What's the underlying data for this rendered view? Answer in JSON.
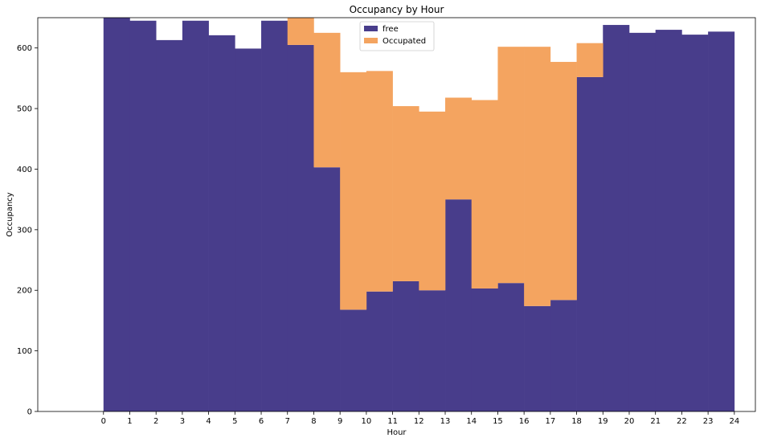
{
  "chart_data": {
    "type": "bar",
    "stacked": true,
    "title": "Occupancy by Hour",
    "xlabel": "Hour",
    "ylabel": "Occupancy",
    "xlim": [
      -2.5,
      24.8
    ],
    "ylim": [
      0,
      650
    ],
    "x_ticks": [
      0,
      1,
      2,
      3,
      4,
      5,
      6,
      7,
      8,
      9,
      10,
      11,
      12,
      13,
      14,
      15,
      16,
      17,
      18,
      19,
      20,
      21,
      22,
      23,
      24
    ],
    "y_ticks": [
      0,
      100,
      200,
      300,
      400,
      500,
      600
    ],
    "bin_edges": [
      0,
      1,
      2,
      3,
      4,
      5,
      6,
      7,
      8,
      9,
      10,
      11,
      12,
      13,
      14,
      15,
      16,
      17,
      18,
      19,
      20,
      21,
      22,
      23,
      24
    ],
    "legend_position": "top-center",
    "grid": false,
    "series": [
      {
        "name": "free",
        "color": "#483d8b",
        "values": [
          650,
          645,
          613,
          645,
          621,
          599,
          645,
          605,
          403,
          168,
          198,
          215,
          200,
          350,
          203,
          212,
          174,
          184,
          552,
          638,
          625,
          630,
          622,
          627
        ]
      },
      {
        "name": "Occupated",
        "color": "#f4a460",
        "values": [
          0,
          0,
          0,
          0,
          0,
          0,
          0,
          45,
          222,
          392,
          364,
          289,
          295,
          168,
          311,
          390,
          428,
          393,
          56,
          0,
          0,
          0,
          0,
          0
        ]
      }
    ]
  }
}
